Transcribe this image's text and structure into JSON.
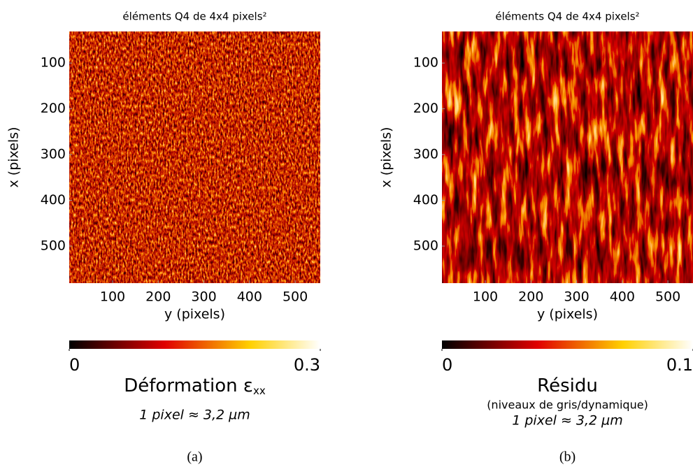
{
  "charts": [
    {
      "type": "heatmap",
      "title": "éléments Q4 de 4x4 pixels²",
      "xlabel": "y (pixels)",
      "ylabel": "x (pixels)",
      "xlim": [
        5,
        555
      ],
      "xticks": [
        100,
        200,
        300,
        400,
        500
      ],
      "ylim": [
        581,
        31
      ],
      "yticks": [
        100,
        200,
        300,
        400,
        500
      ],
      "colormap": "hot",
      "colorbar": {
        "lim": [
          0,
          0.3
        ],
        "ticks": [
          0,
          0.3
        ],
        "label": "Déformation ε",
        "label_subscript": "xx"
      },
      "note": "1 pixel ≈ 3,2 µm",
      "caption": "(a)"
    },
    {
      "type": "heatmap",
      "title": "éléments Q4 de 4x4 pixels²",
      "xlabel": "y (pixels)",
      "ylabel": "x (pixels)",
      "xlim": [
        5,
        555
      ],
      "xticks": [
        100,
        200,
        300,
        400,
        500
      ],
      "ylim": [
        581,
        31
      ],
      "yticks": [
        100,
        200,
        300,
        400,
        500
      ],
      "colormap": "hot",
      "colorbar": {
        "lim": [
          0,
          0.1
        ],
        "ticks": [
          0,
          0.1
        ],
        "label": "Résidu",
        "sublabel": "(niveaux de gris/dynamique)"
      },
      "note": "1 pixel ≈ 3,2 µm",
      "caption": "(b)"
    }
  ]
}
